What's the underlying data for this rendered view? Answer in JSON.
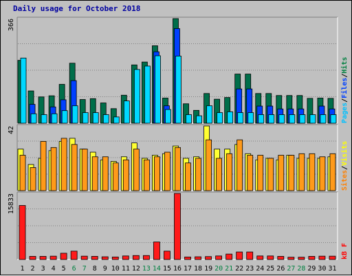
{
  "chart_data": {
    "type": "bar",
    "title": "Daily usage for October 2018",
    "days": [
      "1",
      "2",
      "3",
      "4",
      "5",
      "6",
      "7",
      "8",
      "9",
      "10",
      "11",
      "12",
      "13",
      "14",
      "15",
      "16",
      "17",
      "18",
      "19",
      "20",
      "21",
      "22",
      "23",
      "24",
      "25",
      "26",
      "27",
      "28",
      "29",
      "30",
      "31"
    ],
    "weekend_days": [
      "6",
      "7",
      "13",
      "14",
      "20",
      "21",
      "27",
      "28"
    ],
    "panels": [
      {
        "id": "hits",
        "max_label": "366",
        "max": 366,
        "legend": [
          {
            "text": "Pages",
            "color": "#00c0ff"
          },
          {
            "text": "/",
            "color": "#000000"
          },
          {
            "text": "Files",
            "color": "#0040ff"
          },
          {
            "text": "/",
            "color": "#000000"
          },
          {
            "text": "Hits",
            "color": "#008040"
          }
        ],
        "series": [
          {
            "name": "Hits",
            "color": "#006e4a",
            "values": [
              220,
              113,
              92,
              96,
              136,
              210,
              83,
              86,
              71,
              51,
              98,
              204,
              214,
              271,
              88,
              366,
              68,
              45,
              104,
              84,
              90,
              172,
              172,
              104,
              104,
              97,
              97,
              97,
              87,
              88,
              87
            ]
          },
          {
            "name": "Files",
            "color": "#0040ff",
            "values": [
              0,
              66,
              0,
              57,
              82,
              149,
              0,
              0,
              0,
              0,
              0,
              0,
              0,
              250,
              61,
              331,
              0,
              0,
              0,
              0,
              0,
              120,
              120,
              60,
              60,
              50,
              50,
              50,
              0,
              60,
              50
            ]
          },
          {
            "name": "Pages",
            "color": "#00d8ff",
            "values": [
              228,
              33,
              30,
              33,
              44,
              61,
              37,
              37,
              30,
              22,
              78,
              188,
              200,
              236,
              48,
              235,
              30,
              26,
              61,
              37,
              40,
              37,
              37,
              30,
              30,
              30,
              30,
              30,
              30,
              30,
              30
            ]
          }
        ]
      },
      {
        "id": "sites",
        "max_label": "42",
        "max": 42,
        "legend": [
          {
            "text": "Sites",
            "color": "#ff8000"
          },
          {
            "text": "/",
            "color": "#000000"
          },
          {
            "text": "Visits",
            "color": "#ffff00"
          }
        ],
        "series": [
          {
            "name": "Visits",
            "color": "#ffff33",
            "values": [
              27,
              17,
              21,
              26,
              32,
              34,
              27,
              25,
              20,
              19,
              22,
              31,
              21,
              23,
              24,
              29,
              21,
              22,
              42,
              27,
              27,
              30,
              24,
              20,
              21,
              20,
              23,
              21,
              21,
              21,
              22
            ]
          },
          {
            "name": "Sites",
            "color": "#ff9a1a",
            "values": [
              23,
              15,
              32,
              28,
              34,
              30,
              27,
              22,
              22,
              18,
              20,
              27,
              20,
              22,
              25,
              28,
              18,
              21,
              33,
              21,
              24,
              33,
              23,
              23,
              21,
              23,
              23,
              24,
              24,
              22,
              24
            ]
          }
        ]
      },
      {
        "id": "kbytes",
        "max_label": "15833",
        "max": 15833,
        "legend": [
          {
            "text": "kB F",
            "color": "#ff0000"
          }
        ],
        "series": [
          {
            "name": "kB F",
            "color": "#ff1a1a",
            "values": [
              12940,
              750,
              750,
              800,
              1500,
              2000,
              800,
              750,
              650,
              600,
              850,
              950,
              950,
              4200,
              2000,
              15833,
              600,
              650,
              700,
              850,
              1300,
              1800,
              1800,
              850,
              850,
              750,
              550,
              550,
              750,
              800,
              800
            ]
          }
        ]
      }
    ],
    "legend_position": "right, vertical"
  }
}
